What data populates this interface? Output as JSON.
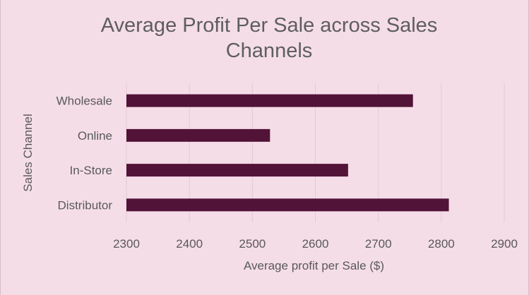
{
  "chart_data": {
    "type": "bar",
    "orientation": "horizontal",
    "title": "Average Profit Per Sale across  Sales Channels",
    "xlabel": "Average profit per Sale ($)",
    "ylabel": "Sales Channel",
    "categories": [
      "Wholesale",
      "Online",
      "In-Store",
      "Distributor"
    ],
    "values": [
      2755,
      2528,
      2652,
      2812
    ],
    "xlim": [
      2300,
      2900
    ],
    "xticks": [
      2300,
      2400,
      2500,
      2600,
      2700,
      2800,
      2900
    ],
    "grid": "vertical",
    "legend": "none",
    "bar_color": "#521338",
    "background_color": "#f5dde8"
  }
}
